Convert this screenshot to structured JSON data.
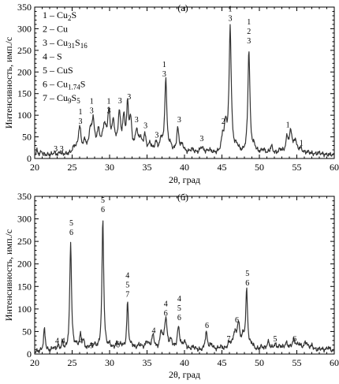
{
  "chart_data": [
    {
      "type": "line",
      "panel_label": "(а)",
      "xlabel": "2θ, град",
      "ylabel": "Интенсивность, имп./с",
      "xlim": [
        20,
        60
      ],
      "ylim": [
        0,
        350
      ],
      "x_ticks": [
        "20",
        "25",
        "30",
        "35",
        "40",
        "45",
        "50",
        "55",
        "60"
      ],
      "y_ticks": [
        "0",
        "50",
        "100",
        "150",
        "200",
        "250",
        "300",
        "350"
      ],
      "legend": {
        "placement": "top-left",
        "entries": [
          {
            "num": "1",
            "phase": [
              "Cu",
              {
                "sub": "2"
              },
              "S"
            ]
          },
          {
            "num": "2",
            "phase": [
              "Cu"
            ]
          },
          {
            "num": "3",
            "phase": [
              "Cu",
              {
                "sub": "31"
              },
              "S",
              {
                "sub": "16"
              }
            ]
          },
          {
            "num": "4",
            "phase": [
              "S"
            ]
          },
          {
            "num": "5",
            "phase": [
              "CuS"
            ]
          },
          {
            "num": "6",
            "phase": [
              "Cu",
              {
                "sub": "1.74"
              },
              "S"
            ]
          },
          {
            "num": "7",
            "phase": [
              "Cu",
              {
                "sub": "9"
              },
              "S",
              {
                "sub": "5"
              }
            ]
          }
        ]
      },
      "baseline": 8,
      "peaks": [
        [
          20.3,
          10,
          0.12
        ],
        [
          20.9,
          8,
          0.12
        ],
        [
          22.6,
          6,
          0.12
        ],
        [
          23.4,
          6,
          0.12
        ],
        [
          25.3,
          15,
          0.3
        ],
        [
          26.0,
          60,
          0.22
        ],
        [
          26.7,
          25,
          0.2
        ],
        [
          27.4,
          45,
          0.2
        ],
        [
          27.8,
          72,
          0.2
        ],
        [
          28.5,
          45,
          0.25
        ],
        [
          29.3,
          58,
          0.3
        ],
        [
          29.9,
          82,
          0.2
        ],
        [
          30.5,
          62,
          0.25
        ],
        [
          31.3,
          85,
          0.2
        ],
        [
          31.9,
          72,
          0.2
        ],
        [
          32.4,
          98,
          0.15
        ],
        [
          32.8,
          70,
          0.2
        ],
        [
          33.6,
          48,
          0.2
        ],
        [
          34.1,
          30,
          0.25
        ],
        [
          34.7,
          38,
          0.2
        ],
        [
          35.4,
          20,
          0.25
        ],
        [
          36.2,
          22,
          0.25
        ],
        [
          36.9,
          30,
          0.2
        ],
        [
          37.5,
          172,
          0.16
        ],
        [
          38.1,
          15,
          0.3
        ],
        [
          39.1,
          55,
          0.18
        ],
        [
          39.7,
          18,
          0.3
        ],
        [
          41.0,
          10,
          0.4
        ],
        [
          42.3,
          15,
          0.3
        ],
        [
          43.3,
          8,
          0.4
        ],
        [
          45.1,
          35,
          0.2
        ],
        [
          45.5,
          60,
          0.2
        ],
        [
          46.1,
          290,
          0.17
        ],
        [
          47.0,
          15,
          0.3
        ],
        [
          48.6,
          240,
          0.16
        ],
        [
          49.3,
          15,
          0.3
        ],
        [
          50.5,
          10,
          0.3
        ],
        [
          51.6,
          18,
          0.2
        ],
        [
          52.8,
          10,
          0.3
        ],
        [
          53.7,
          35,
          0.2
        ],
        [
          54.2,
          50,
          0.22
        ],
        [
          54.8,
          30,
          0.2
        ],
        [
          55.5,
          12,
          0.3
        ],
        [
          56.5,
          5,
          0.4
        ],
        [
          58.0,
          4,
          0.4
        ]
      ],
      "peak_labels": [
        {
          "x": 22.8,
          "y": 16,
          "labels": [
            "3"
          ]
        },
        {
          "x": 23.6,
          "y": 16,
          "labels": [
            "3"
          ]
        },
        {
          "x": 26.1,
          "y": 80,
          "labels": [
            "1",
            "3"
          ]
        },
        {
          "x": 27.6,
          "y": 105,
          "labels": [
            "1",
            "3"
          ]
        },
        {
          "x": 29.9,
          "y": 105,
          "labels": [
            "1",
            "3"
          ]
        },
        {
          "x": 31.4,
          "y": 128,
          "labels": [
            "3"
          ]
        },
        {
          "x": 32.6,
          "y": 137,
          "labels": [
            "3"
          ]
        },
        {
          "x": 33.6,
          "y": 84,
          "labels": [
            "3"
          ]
        },
        {
          "x": 34.8,
          "y": 70,
          "labels": [
            "3"
          ]
        },
        {
          "x": 36.3,
          "y": 48,
          "labels": [
            "3"
          ]
        },
        {
          "x": 37.3,
          "y": 190,
          "labels": [
            "1",
            "3"
          ]
        },
        {
          "x": 39.3,
          "y": 84,
          "labels": [
            "3"
          ]
        },
        {
          "x": 42.3,
          "y": 40,
          "labels": [
            "3"
          ]
        },
        {
          "x": 45.2,
          "y": 80,
          "labels": [
            "2"
          ]
        },
        {
          "x": 46.1,
          "y": 318,
          "labels": [
            "1",
            "3"
          ]
        },
        {
          "x": 48.6,
          "y": 266,
          "labels": [
            "1",
            "2",
            "3"
          ]
        },
        {
          "x": 53.8,
          "y": 72,
          "labels": [
            "1"
          ]
        },
        {
          "x": 55.6,
          "y": 30,
          "labels": [
            "1"
          ]
        }
      ]
    },
    {
      "type": "line",
      "panel_label": "(б)",
      "xlabel": "2θ, град",
      "ylabel": "Интенсивность, имп./с",
      "xlim": [
        20,
        60
      ],
      "ylim": [
        0,
        350
      ],
      "x_ticks": [
        "20",
        "25",
        "30",
        "35",
        "40",
        "45",
        "50",
        "55",
        "60"
      ],
      "y_ticks": [
        "0",
        "50",
        "100",
        "150",
        "200",
        "250",
        "300",
        "350"
      ],
      "baseline": 5,
      "peaks": [
        [
          21.3,
          50,
          0.14
        ],
        [
          22.5,
          8,
          0.2
        ],
        [
          23.1,
          12,
          0.15
        ],
        [
          23.7,
          18,
          0.15
        ],
        [
          24.8,
          242,
          0.14
        ],
        [
          25.5,
          10,
          0.2
        ],
        [
          26.1,
          30,
          0.18
        ],
        [
          26.5,
          18,
          0.2
        ],
        [
          27.4,
          8,
          0.3
        ],
        [
          28.0,
          10,
          0.3
        ],
        [
          29.1,
          292,
          0.14
        ],
        [
          30.0,
          10,
          0.3
        ],
        [
          31.0,
          15,
          0.3
        ],
        [
          31.6,
          10,
          0.3
        ],
        [
          32.4,
          105,
          0.13
        ],
        [
          33.0,
          10,
          0.3
        ],
        [
          34.0,
          12,
          0.4
        ],
        [
          35.0,
          18,
          0.3
        ],
        [
          35.8,
          32,
          0.22
        ],
        [
          36.9,
          40,
          0.2
        ],
        [
          37.5,
          70,
          0.2
        ],
        [
          38.2,
          20,
          0.25
        ],
        [
          39.2,
          50,
          0.2
        ],
        [
          40.0,
          18,
          0.3
        ],
        [
          41.2,
          8,
          0.4
        ],
        [
          42.9,
          40,
          0.18
        ],
        [
          43.6,
          12,
          0.3
        ],
        [
          44.8,
          8,
          0.4
        ],
        [
          46.0,
          15,
          0.3
        ],
        [
          46.7,
          35,
          0.25
        ],
        [
          47.2,
          55,
          0.2
        ],
        [
          47.8,
          25,
          0.25
        ],
        [
          48.3,
          128,
          0.15
        ],
        [
          49.0,
          12,
          0.3
        ],
        [
          50.3,
          8,
          0.3
        ],
        [
          51.2,
          18,
          0.25
        ],
        [
          52.1,
          12,
          0.3
        ],
        [
          52.8,
          8,
          0.3
        ],
        [
          53.6,
          15,
          0.3
        ],
        [
          54.6,
          22,
          0.3
        ],
        [
          55.3,
          12,
          0.3
        ],
        [
          56.2,
          18,
          0.3
        ],
        [
          57.0,
          10,
          0.3
        ],
        [
          58.2,
          5,
          0.4
        ],
        [
          59.2,
          8,
          0.3
        ]
      ],
      "peak_labels": [
        {
          "x": 23.0,
          "y": 24,
          "labels": [
            "4"
          ]
        },
        {
          "x": 23.8,
          "y": 24,
          "labels": [
            "4"
          ]
        },
        {
          "x": 24.9,
          "y": 264,
          "labels": [
            "5",
            "6"
          ]
        },
        {
          "x": 26.2,
          "y": 24,
          "labels": [
            "4"
          ]
        },
        {
          "x": 27.6,
          "y": 12,
          "labels": [
            "7"
          ]
        },
        {
          "x": 29.1,
          "y": 315,
          "labels": [
            "5",
            "6"
          ]
        },
        {
          "x": 31.1,
          "y": 15,
          "labels": [
            "6"
          ]
        },
        {
          "x": 32.4,
          "y": 127,
          "labels": [
            "4",
            "5",
            "7"
          ]
        },
        {
          "x": 35.9,
          "y": 46,
          "labels": [
            "4"
          ]
        },
        {
          "x": 37.5,
          "y": 85,
          "labels": [
            "4",
            "6"
          ]
        },
        {
          "x": 39.3,
          "y": 75,
          "labels": [
            "4",
            "5",
            "6"
          ]
        },
        {
          "x": 43.0,
          "y": 58,
          "labels": [
            "6"
          ]
        },
        {
          "x": 45.9,
          "y": 28,
          "labels": [
            "7"
          ]
        },
        {
          "x": 47.0,
          "y": 70,
          "labels": [
            "6"
          ]
        },
        {
          "x": 48.4,
          "y": 152,
          "labels": [
            "5",
            "6"
          ]
        },
        {
          "x": 52.1,
          "y": 28,
          "labels": [
            "5"
          ]
        },
        {
          "x": 54.7,
          "y": 28,
          "labels": [
            "6"
          ]
        }
      ]
    }
  ]
}
